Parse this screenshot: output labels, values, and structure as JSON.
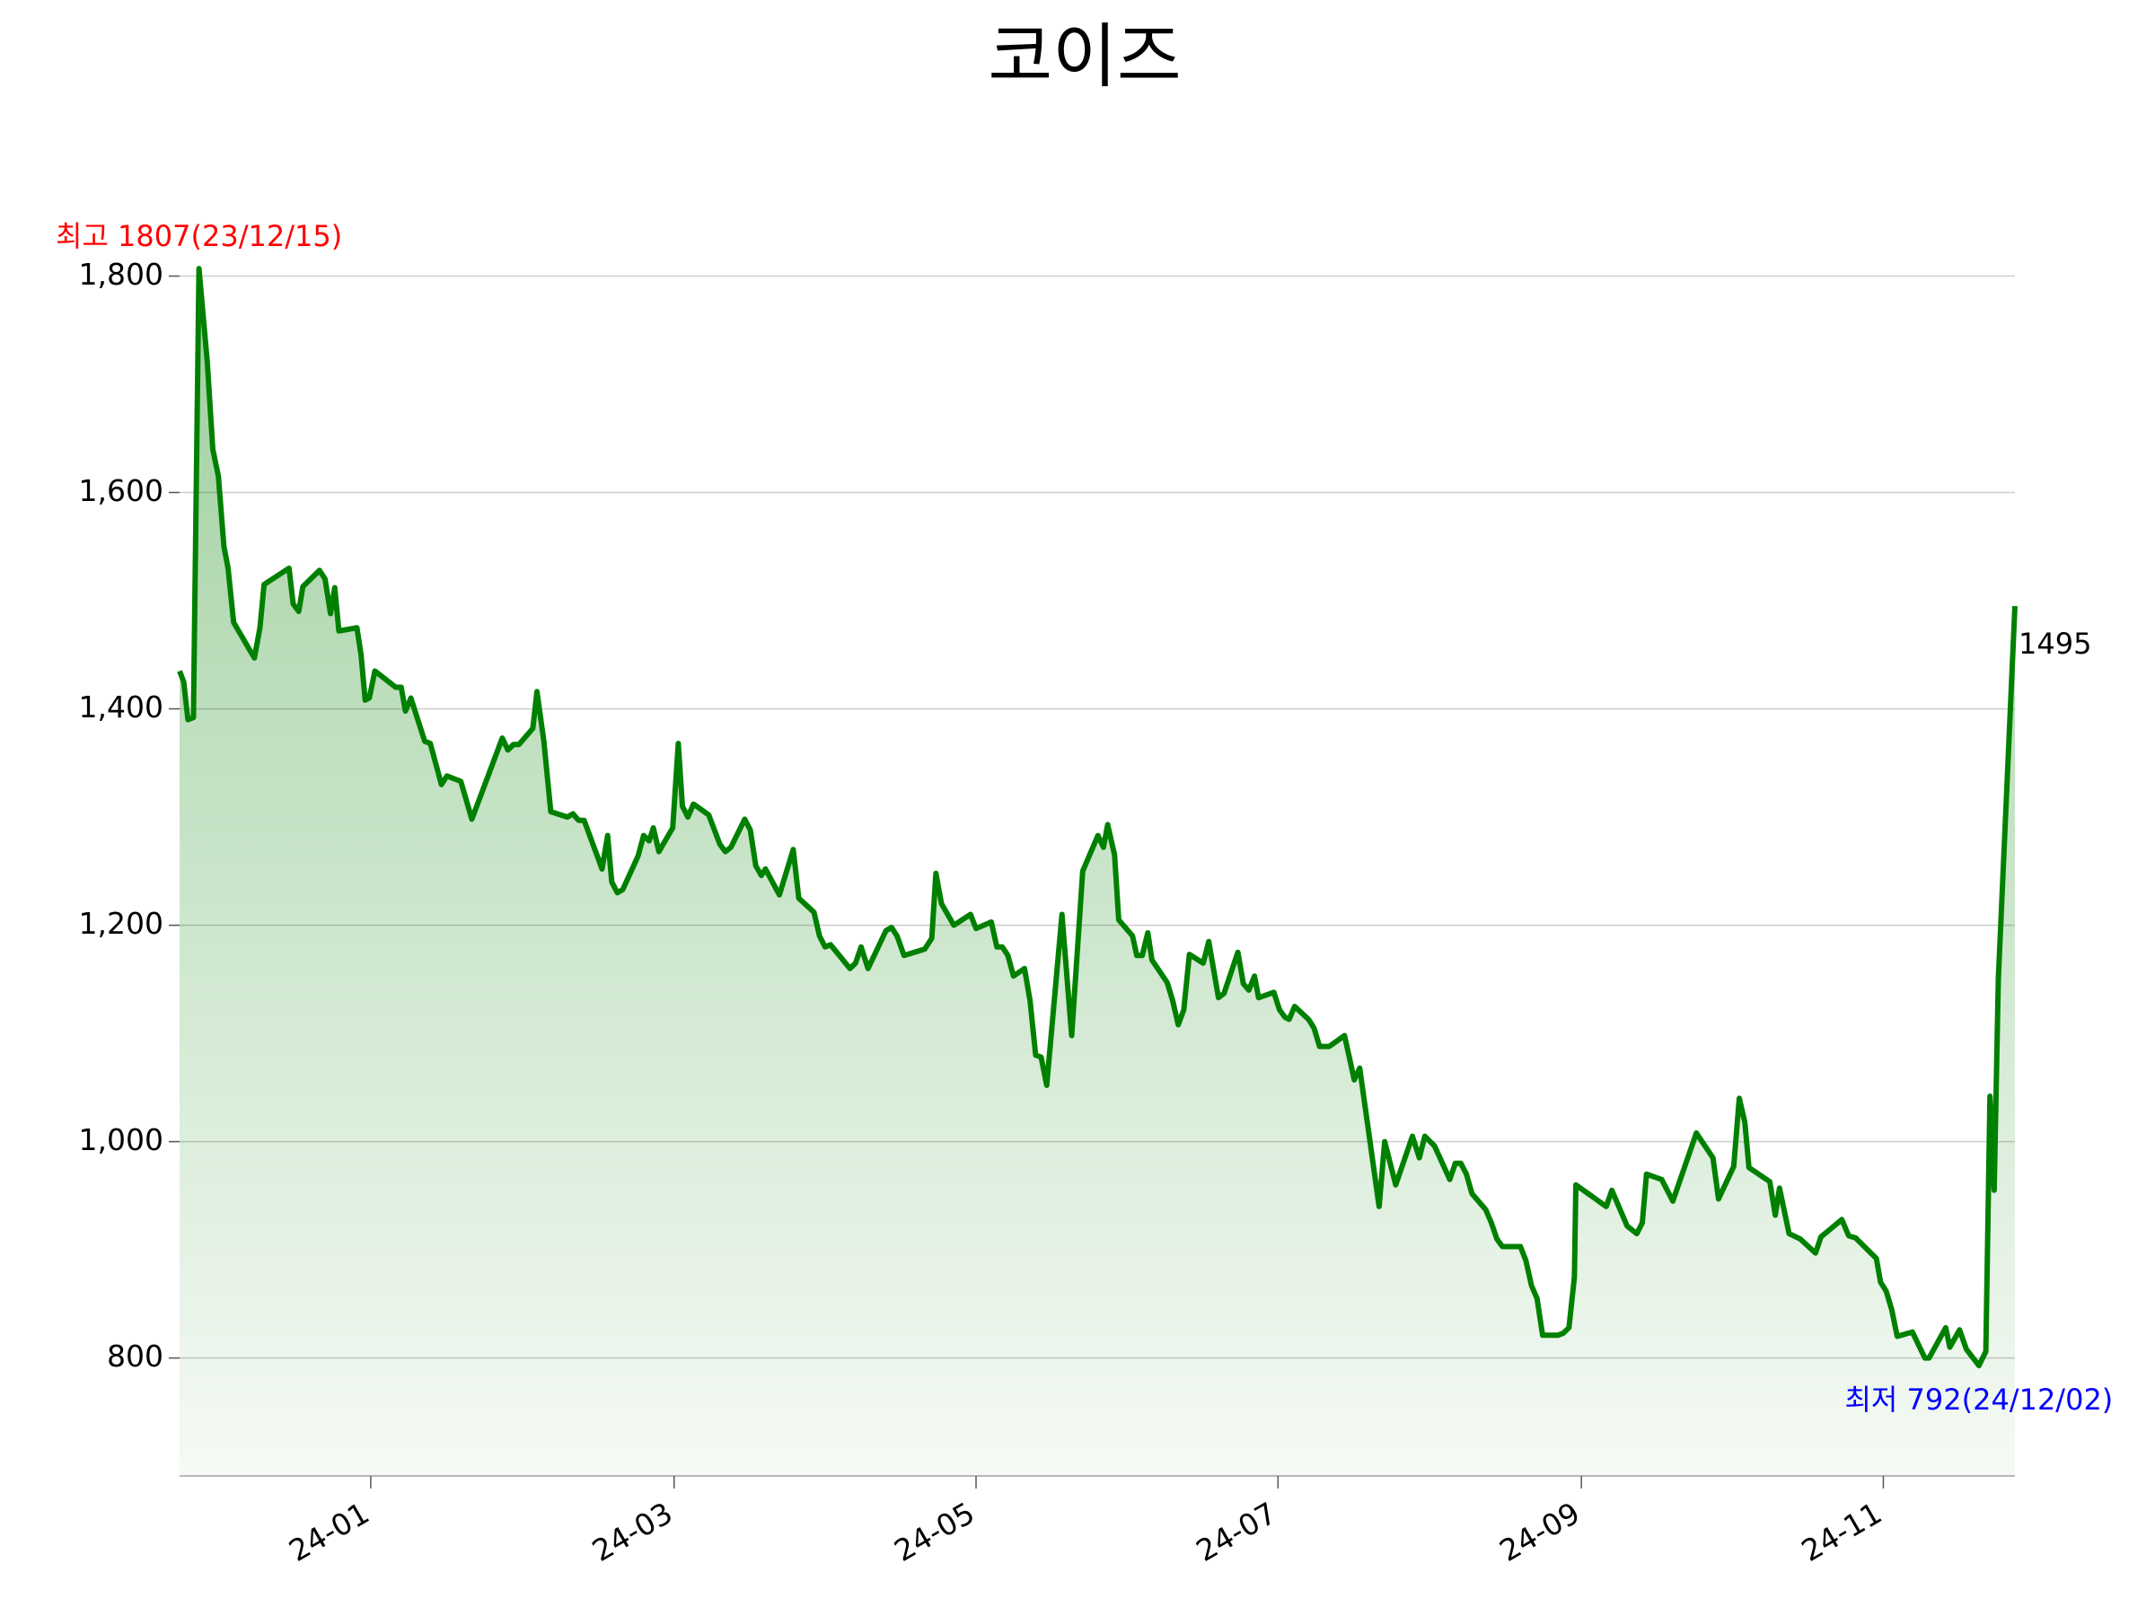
{
  "chart_data": {
    "type": "line",
    "title": "코이즈",
    "color": "#008000",
    "grid": true,
    "x": [
      130,
      133,
      136,
      140,
      144,
      150,
      154,
      158,
      162,
      165,
      169,
      184,
      188,
      191,
      209,
      212,
      216,
      219,
      231,
      235,
      239,
      242,
      245,
      258,
      261,
      264,
      267,
      271,
      286,
      290,
      293,
      297,
      307,
      311,
      319,
      323,
      333,
      341,
      363,
      367,
      371,
      375,
      385,
      388,
      393,
      398,
      410,
      414,
      418,
      422,
      435,
      439,
      442,
      446,
      450,
      461,
      465,
      469,
      472,
      476,
      486,
      490,
      493,
      497,
      501,
      512,
      520,
      524,
      528,
      538,
      542,
      546,
      550,
      553,
      563,
      573,
      577,
      588,
      592,
      596,
      600,
      614,
      618,
      622,
      627,
      640,
      644,
      648,
      653,
      668,
      673,
      676,
      680,
      689,
      701,
      705,
      716,
      720,
      724,
      728,
      732,
      740,
      744,
      748,
      752,
      756,
      767,
      774,
      782,
      793,
      797,
      800,
      805,
      808,
      818,
      821,
      825,
      829,
      832,
      843,
      847,
      851,
      855,
      859,
      869,
      873,
      880,
      884,
      894,
      898,
      902,
      906,
      909,
      920,
      924,
      928,
      931,
      935,
      945,
      949,
      953,
      960,
      971,
      975,
      978,
      982,
      996,
      1000,
      1008,
      1020,
      1025,
      1029,
      1036,
      1047,
      1051,
      1055,
      1059,
      1063,
      1073,
      1077,
      1081,
      1085,
      1098,
      1102,
      1106,
      1110,
      1114,
      1125,
      1129,
      1133,
      1137,
      1138,
      1160,
      1164,
      1175,
      1182,
      1186,
      1189,
      1200,
      1208,
      1225,
      1237,
      1241,
      1252,
      1256,
      1260,
      1263,
      1278,
      1282,
      1285,
      1292,
      1300,
      1311,
      1315,
      1330,
      1335,
      1340,
      1355,
      1358,
      1362,
      1366,
      1370,
      1381,
      1390,
      1393,
      1405,
      1408,
      1415,
      1420,
      1429,
      1434,
      1437,
      1440,
      1443,
      1455
    ],
    "values": [
      1435,
      1425,
      1390,
      1392,
      1807,
      1720,
      1640,
      1615,
      1550,
      1530,
      1480,
      1447,
      1475,
      1515,
      1530,
      1497,
      1490,
      1513,
      1528,
      1520,
      1488,
      1512,
      1472,
      1475,
      1450,
      1408,
      1410,
      1435,
      1420,
      1420,
      1398,
      1410,
      1370,
      1368,
      1330,
      1338,
      1333,
      1298,
      1373,
      1362,
      1367,
      1367,
      1382,
      1416,
      1370,
      1305,
      1300,
      1303,
      1297,
      1297,
      1252,
      1283,
      1240,
      1230,
      1233,
      1264,
      1283,
      1278,
      1290,
      1268,
      1290,
      1368,
      1310,
      1300,
      1312,
      1302,
      1275,
      1268,
      1272,
      1298,
      1288,
      1255,
      1246,
      1252,
      1228,
      1270,
      1225,
      1212,
      1190,
      1180,
      1182,
      1160,
      1165,
      1180,
      1160,
      1195,
      1198,
      1190,
      1172,
      1178,
      1188,
      1248,
      1220,
      1200,
      1210,
      1197,
      1203,
      1180,
      1180,
      1172,
      1153,
      1160,
      1130,
      1080,
      1078,
      1052,
      1210,
      1098,
      1250,
      1283,
      1272,
      1293,
      1265,
      1205,
      1190,
      1172,
      1172,
      1193,
      1168,
      1147,
      1130,
      1108,
      1122,
      1173,
      1165,
      1185,
      1133,
      1137,
      1175,
      1146,
      1140,
      1153,
      1133,
      1138,
      1122,
      1115,
      1113,
      1125,
      1113,
      1105,
      1088,
      1088,
      1098,
      1075,
      1057,
      1068,
      940,
      1000,
      960,
      1005,
      985,
      1005,
      996,
      965,
      980,
      980,
      970,
      952,
      937,
      925,
      910,
      903,
      903,
      890,
      867,
      855,
      821,
      821,
      823,
      828,
      875,
      960,
      940,
      955,
      922,
      915,
      925,
      970,
      965,
      945,
      1008,
      985,
      947,
      977,
      1040,
      1018,
      976,
      963,
      932,
      957,
      915,
      910,
      897,
      912,
      928,
      913,
      911,
      892,
      870,
      862,
      845,
      820,
      824,
      800,
      800,
      828,
      810,
      826,
      808,
      793,
      806,
      1042,
      955,
      1150,
      1495
    ],
    "xlim": [
      130,
      1455
    ],
    "xticks": [
      {
        "value": 268,
        "label": "24-01"
      },
      {
        "value": 487,
        "label": "24-03"
      },
      {
        "value": 705,
        "label": "24-05"
      },
      {
        "value": 923,
        "label": "24-07"
      },
      {
        "value": 1142,
        "label": "24-09"
      },
      {
        "value": 1360,
        "label": "24-11"
      }
    ],
    "ylim": [
      691,
      1900
    ],
    "yticks": [
      {
        "value": 800,
        "label": "800"
      },
      {
        "value": 1000,
        "label": "1,000"
      },
      {
        "value": 1200,
        "label": "1,200"
      },
      {
        "value": 1400,
        "label": "1,400"
      },
      {
        "value": 1600,
        "label": "1,600"
      },
      {
        "value": 1800,
        "label": "1,800"
      }
    ],
    "annotations": [
      {
        "text": "최고 1807(23/12/15)",
        "color": "#ff0000"
      },
      {
        "text": "최저 792(24/12/02)",
        "color": "#0000ff"
      },
      {
        "text": "1495",
        "color": "#000000"
      }
    ]
  }
}
